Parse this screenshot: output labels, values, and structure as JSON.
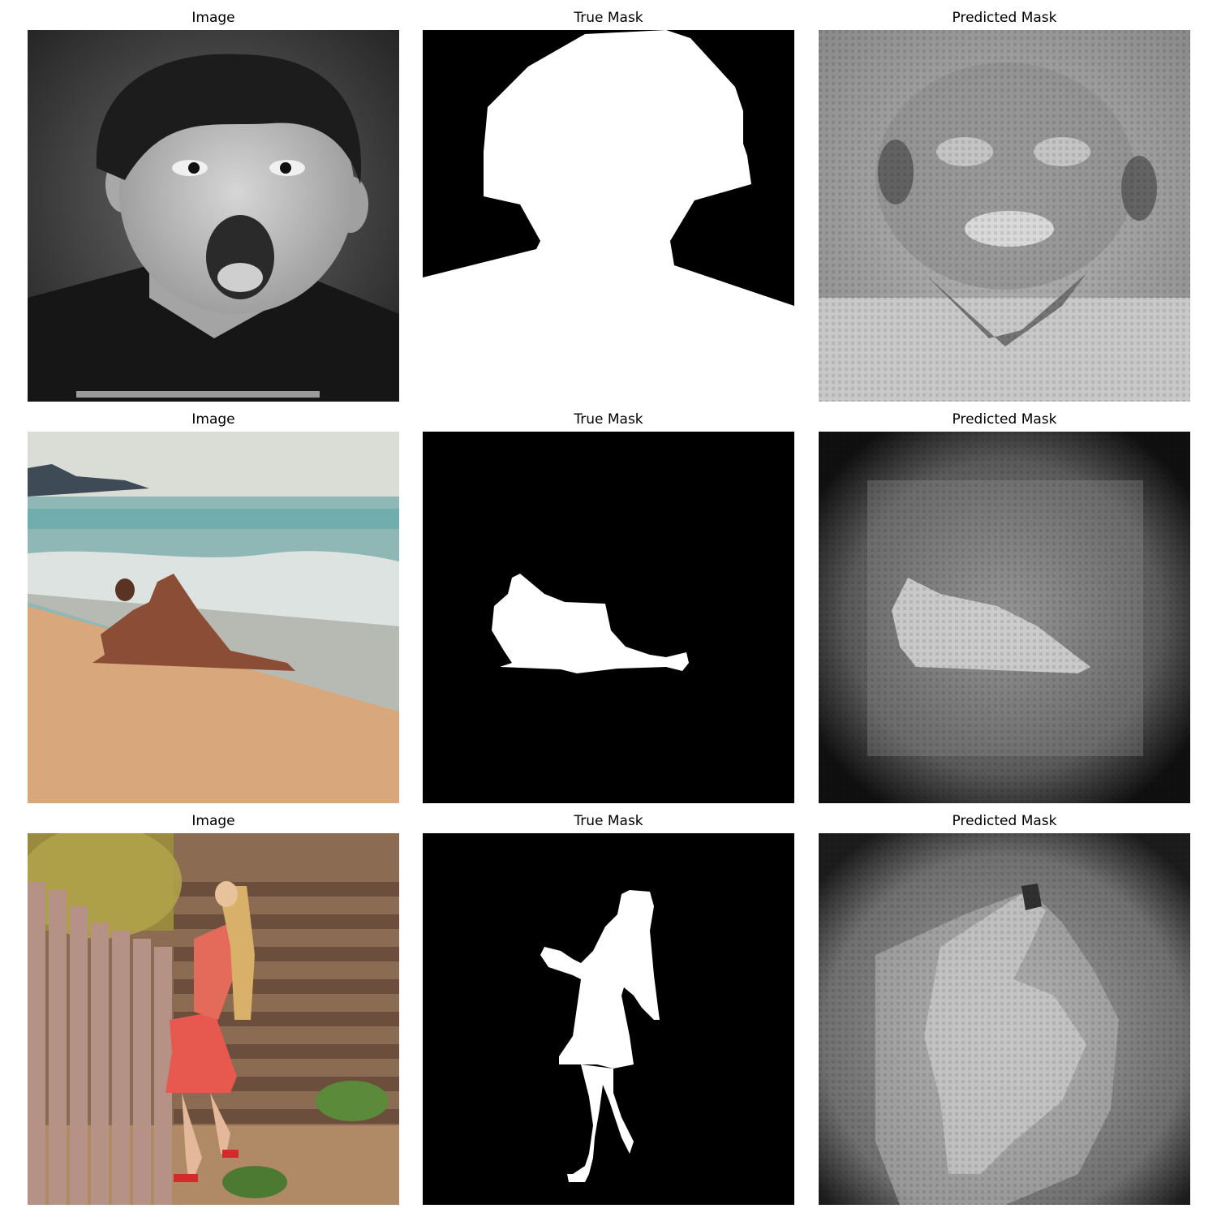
{
  "figure": {
    "column_titles": [
      "Image",
      "True Mask",
      "Predicted Mask"
    ],
    "rows": [
      {
        "image": "boy-screaming-grayscale-photo",
        "true_mask": "boy-head-shoulders-silhouette",
        "predicted_mask": "blurry-grayscale-face-prediction"
      },
      {
        "image": "couple-on-beach-photo",
        "true_mask": "couple-lying-silhouette",
        "predicted_mask": "blurry-dark-border-prediction"
      },
      {
        "image": "girl-red-dress-by-fence-photo",
        "true_mask": "girl-standing-silhouette",
        "predicted_mask": "blurry-girl-fence-prediction"
      }
    ]
  }
}
